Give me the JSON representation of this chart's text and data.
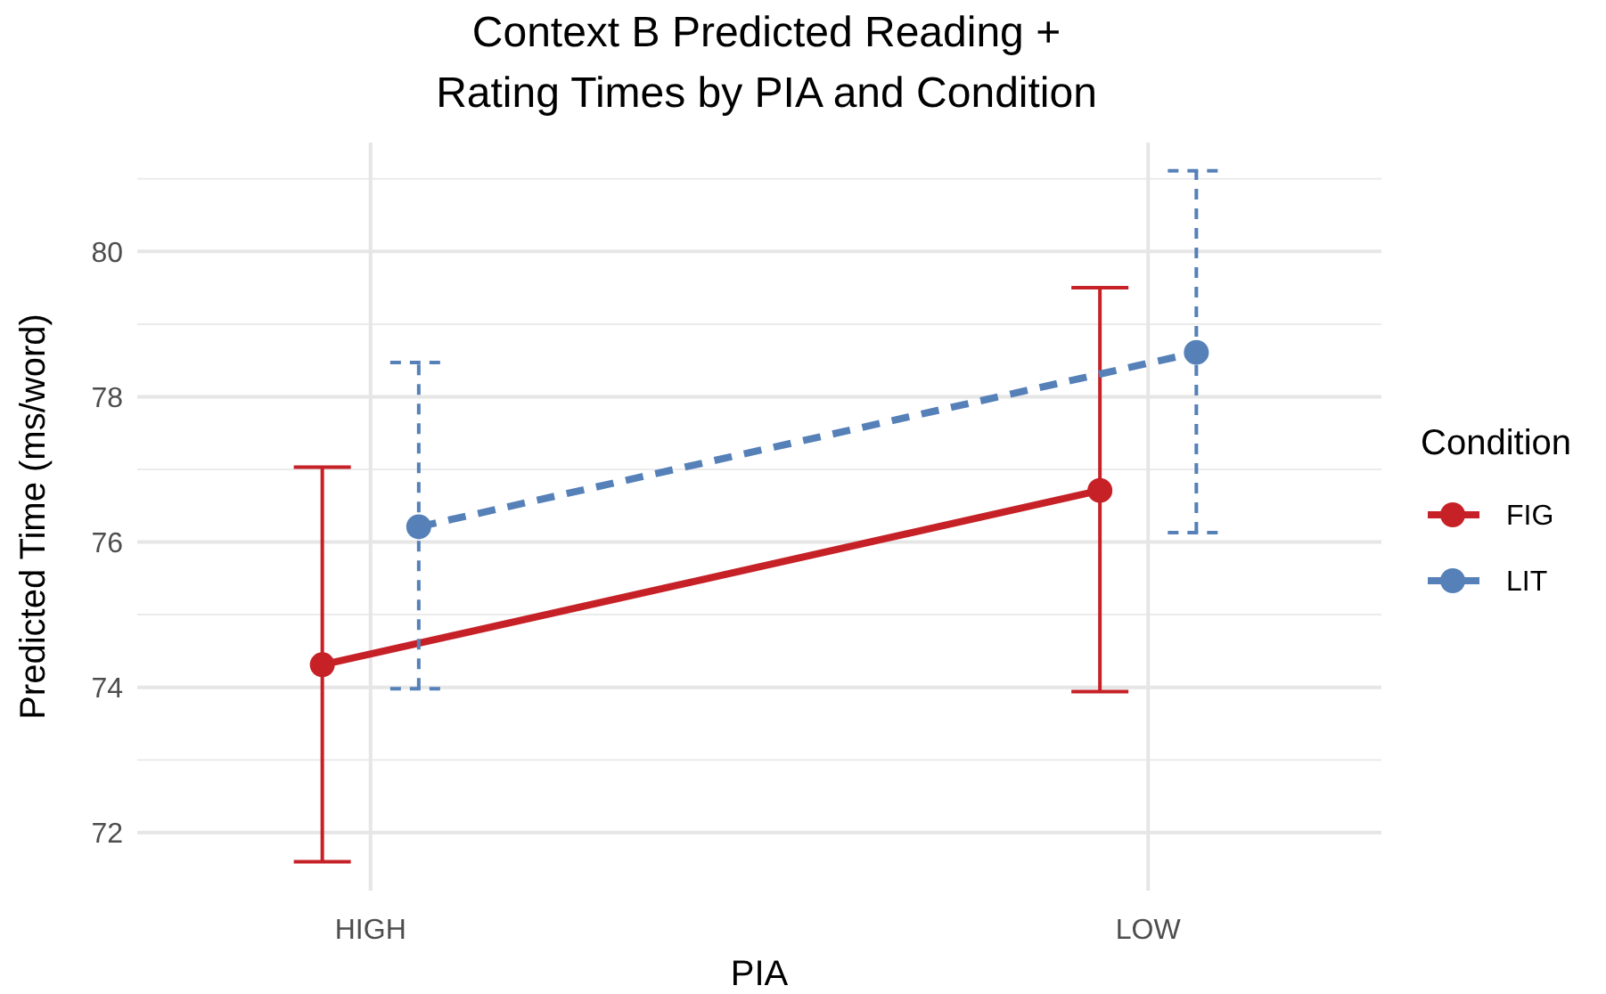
{
  "chart_data": {
    "type": "line",
    "title": "Context B Predicted Reading +\nRating Times by PIA and Condition",
    "xlabel": "PIA",
    "ylabel": "Predicted Time (ms/word)",
    "legend_title": "Condition",
    "categories": [
      "HIGH",
      "LOW"
    ],
    "ylim": [
      71.2,
      81.5
    ],
    "yticks": [
      72,
      74,
      76,
      78,
      80
    ],
    "grid": true,
    "legend": "right",
    "marker": "circle",
    "series": [
      {
        "name": "FIG",
        "color": "#c62127",
        "values": [
          74.31,
          76.71
        ],
        "errors": [
          [
            71.6,
            77.03
          ],
          [
            73.94,
            79.5
          ]
        ],
        "line_style": "solid"
      },
      {
        "name": "LIT",
        "color": "#5580b8",
        "values": [
          76.21,
          78.61
        ],
        "errors": [
          [
            73.98,
            78.47
          ],
          [
            76.13,
            81.11
          ]
        ],
        "line_style": "dashed"
      }
    ]
  }
}
